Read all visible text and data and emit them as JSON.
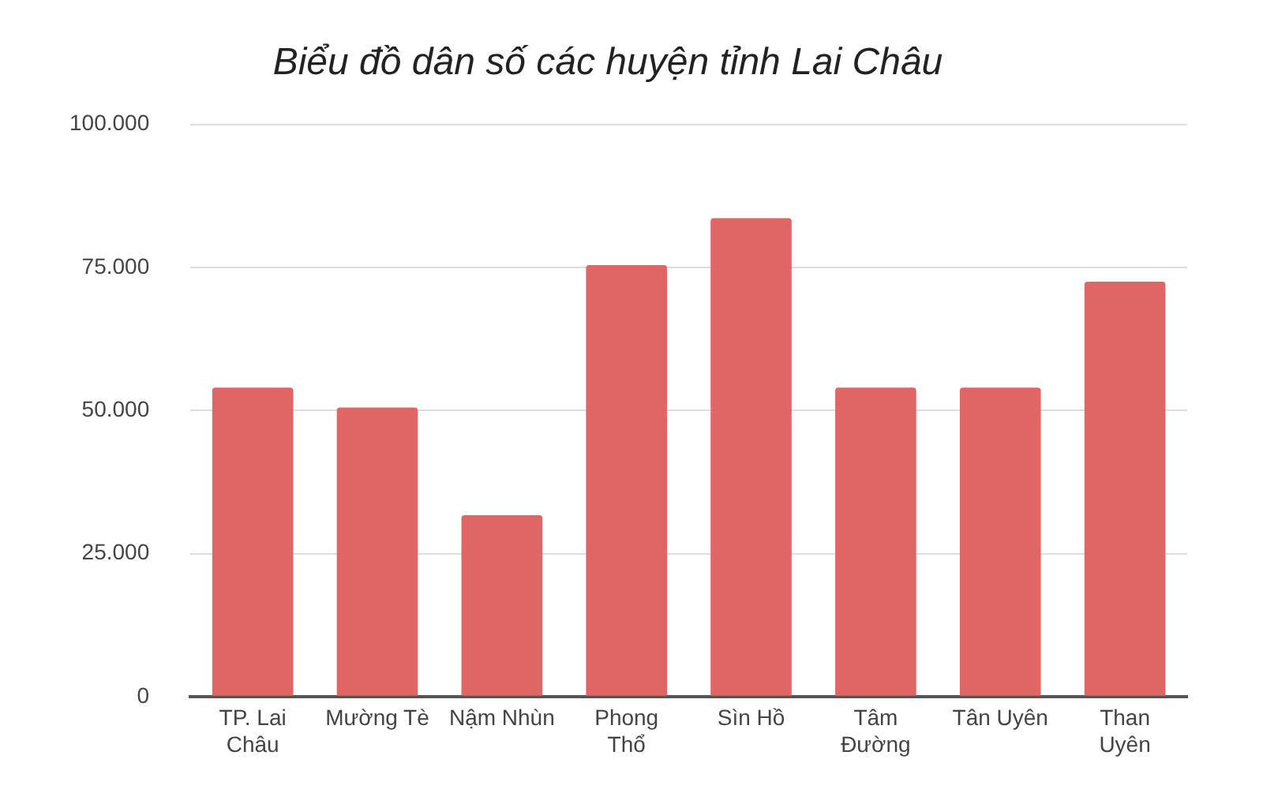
{
  "chart_data": {
    "type": "bar",
    "title": "Biểu đồ dân số các huyện tỉnh Lai Châu",
    "categories": [
      "TP. Lai Châu",
      "Mường Tè",
      "Nậm Nhùn",
      "Phong Thổ",
      "Sìn Hồ",
      "Tâm Đường",
      "Tân Uyên",
      "Than Uyên"
    ],
    "values": [
      54000,
      50500,
      31700,
      75400,
      83600,
      54000,
      54000,
      72500
    ],
    "color": "#e06666",
    "ylim": [
      0,
      100000
    ],
    "yticks": [
      {
        "value": 0,
        "label": "0"
      },
      {
        "value": 25000,
        "label": "25.000"
      },
      {
        "value": 50000,
        "label": "50.000"
      },
      {
        "value": 75000,
        "label": "75.000"
      },
      {
        "value": 100000,
        "label": "100.000"
      }
    ],
    "grid": "y"
  }
}
